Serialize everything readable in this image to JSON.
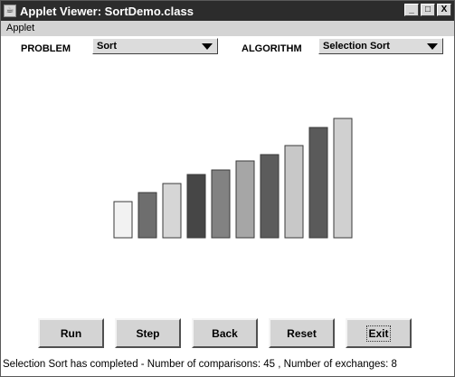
{
  "window": {
    "title": "Applet Viewer: SortDemo.class"
  },
  "window_controls": {
    "minimize": "_",
    "maximize": "□",
    "close": "X"
  },
  "menu": {
    "items": [
      "Applet"
    ]
  },
  "problem": {
    "label": "PROBLEM",
    "selected": "Sort"
  },
  "algorithm": {
    "label": "ALGORITHM",
    "selected": "Selection Sort"
  },
  "bars": {
    "values": [
      4,
      5,
      6,
      7,
      7.5,
      8.5,
      9.2,
      10.2,
      12.2,
      13.2
    ],
    "colors": [
      "#f2f2f2",
      "#6e6e6e",
      "#d6d6d6",
      "#464646",
      "#828282",
      "#a6a6a6",
      "#5c5c5c",
      "#c8c8c8",
      "#5a5a5a",
      "#d0d0d0"
    ]
  },
  "buttons": {
    "run": "Run",
    "step": "Step",
    "back": "Back",
    "reset": "Reset",
    "exit": "Exit"
  },
  "status": {
    "text": "Selection Sort has completed - Number of comparisons: 45 , Number of exchanges: 8"
  }
}
